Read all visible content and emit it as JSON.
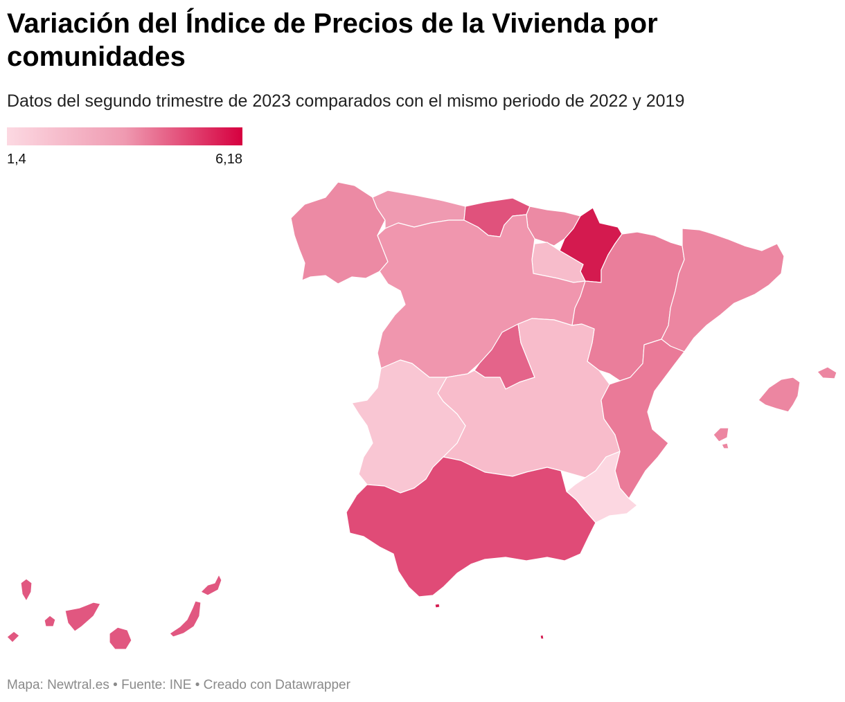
{
  "header": {
    "title": "Variación del Índice de Precios de la Vivienda por comunidades",
    "subtitle": "Datos del segundo trimestre de 2023 comparados con el mismo periodo de 2022 y 2019"
  },
  "legend": {
    "min_label": "1,4",
    "max_label": "6,18",
    "color_low": "#fcd9e2",
    "color_high": "#d6003f"
  },
  "regions": {
    "galicia": "#ec8aa4",
    "asturias": "#ef9ab1",
    "cantabria": "#e0527c",
    "pais_vasco": "#ec8aa4",
    "navarra": "#d41a4f",
    "la_rioja": "#f7bccb",
    "aragon": "#ea7e9b",
    "cataluna": "#ec86a1",
    "castilla_leon": "#f096ae",
    "madrid": "#e4648a",
    "castilla_la_mancha": "#f8bccb",
    "extremadura": "#f9c6d3",
    "valencia": "#ea7a98",
    "murcia": "#fcd7e1",
    "andalucia": "#e04b77",
    "baleares": "#ec86a1",
    "canarias": "#e15780",
    "ceuta_melilla": "#d41a4f"
  },
  "footer": {
    "map_credit": "Mapa: Newtral.es",
    "source": "Fuente: INE",
    "tool": "Creado con Datawrapper",
    "separator": " • "
  }
}
